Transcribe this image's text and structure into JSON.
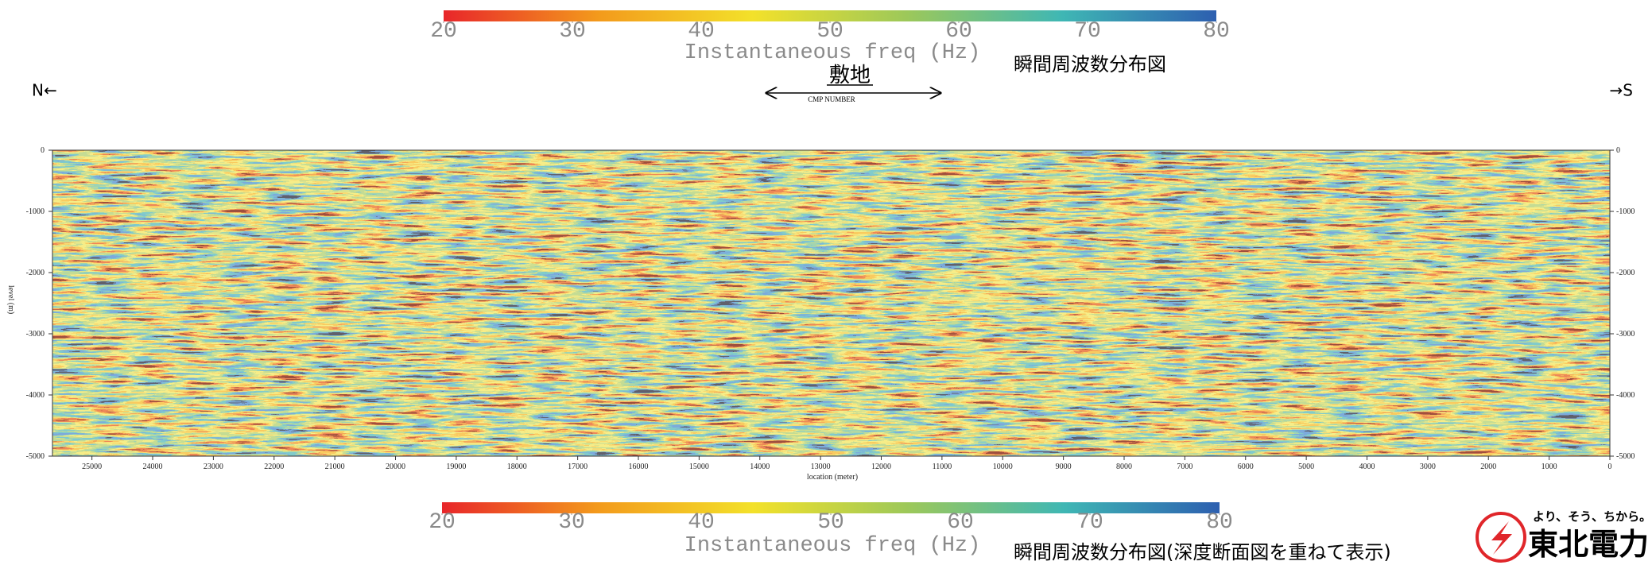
{
  "chart_data": {
    "type": "section",
    "xlabel": "location (meter)",
    "ylabel": "level (m)",
    "xlim": [
      25650,
      0
    ],
    "xticks": [
      25000,
      24000,
      23000,
      22000,
      21000,
      20000,
      19000,
      18000,
      17000,
      16000,
      15000,
      14000,
      13000,
      12000,
      11000,
      10000,
      9000,
      8000,
      7000,
      6000,
      5000,
      4000,
      3000,
      2000,
      1000,
      0
    ],
    "ylim": [
      -5000,
      0
    ],
    "yticks": [
      0,
      -1000,
      -2000,
      -3000,
      -4000,
      -5000
    ],
    "colorbar": {
      "label": "Instantaneous freq (Hz)",
      "lim": [
        20,
        80
      ],
      "ticks": [
        20,
        30,
        40,
        50,
        60,
        70,
        80
      ],
      "colors": [
        "#e8262a",
        "#f39a1c",
        "#f3e12a",
        "#9cc85a",
        "#3fb7b4",
        "#2d5fb0"
      ]
    }
  },
  "header": {
    "caption": "瞬間周波数分布図",
    "north": "N←",
    "south": "→S",
    "site_label": "敷地",
    "cmp_label": "CMP NUMBER"
  },
  "footer": {
    "caption": "瞬間周波数分布図(深度断面図を重ねて表示)",
    "tagline": "より、そう、ちから。",
    "company": "東北電力"
  }
}
